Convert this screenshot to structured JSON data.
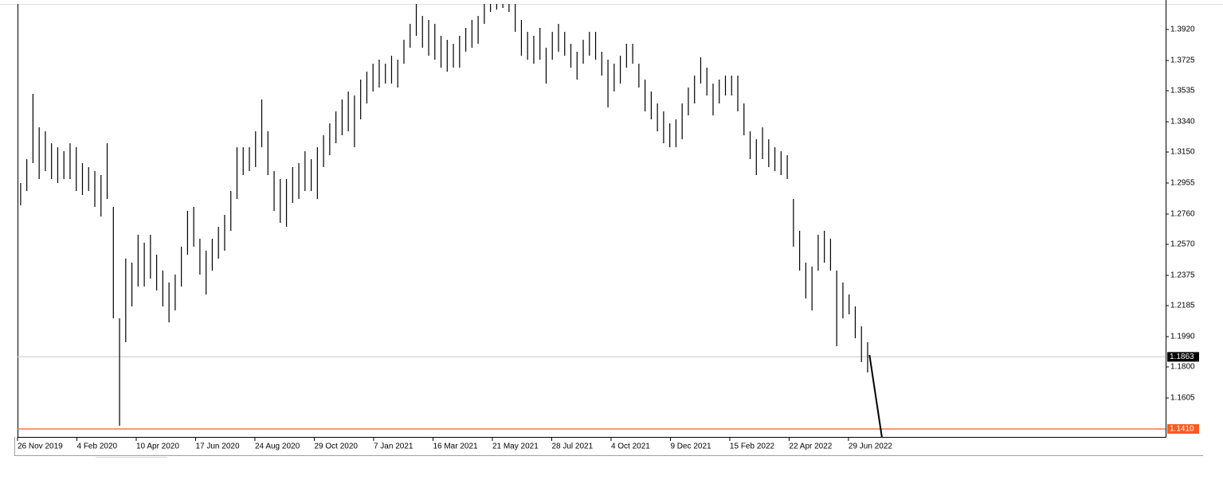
{
  "chart_data": {
    "type": "ohlc",
    "xlim": [
      0,
      185.7
    ],
    "xticks": [
      {
        "value": 0,
        "label": "26 Nov 2019"
      },
      {
        "value": 9.6,
        "label": "4 Feb 2020"
      },
      {
        "value": 19.2,
        "label": "10 Apr 2020"
      },
      {
        "value": 28.8,
        "label": "17 Jun 2020"
      },
      {
        "value": 38.4,
        "label": "24 Aug 2020"
      },
      {
        "value": 48,
        "label": "29 Oct 2020"
      },
      {
        "value": 57.6,
        "label": "7 Jan 2021"
      },
      {
        "value": 67.2,
        "label": "16 Mar 2021"
      },
      {
        "value": 76.8,
        "label": "21 May 2021"
      },
      {
        "value": 86.4,
        "label": "28 Jul 2021"
      },
      {
        "value": 96,
        "label": "4 Oct 2021"
      },
      {
        "value": 105.6,
        "label": "9 Dec 2021"
      },
      {
        "value": 115.2,
        "label": "15 Feb 2022"
      },
      {
        "value": 124.8,
        "label": "22 Apr 2022"
      },
      {
        "value": 134.4,
        "label": "29 Jun 2022"
      }
    ],
    "ylim": [
      1.136,
      1.408
    ],
    "yticks": [
      {
        "value": 1.392,
        "label": "1.3920"
      },
      {
        "value": 1.3725,
        "label": "1.3725"
      },
      {
        "value": 1.3535,
        "label": "1.3535"
      },
      {
        "value": 1.334,
        "label": "1.3340"
      },
      {
        "value": 1.315,
        "label": "1.3150"
      },
      {
        "value": 1.2955,
        "label": "1.2955"
      },
      {
        "value": 1.276,
        "label": "1.2760"
      },
      {
        "value": 1.257,
        "label": "1.2570"
      },
      {
        "value": 1.2375,
        "label": "1.2375"
      },
      {
        "value": 1.2185,
        "label": "1.2185"
      },
      {
        "value": 1.199,
        "label": "1.1990"
      },
      {
        "value": 1.18,
        "label": "1.1800"
      },
      {
        "value": 1.1605,
        "label": "1.1605"
      }
    ],
    "color": "#000000",
    "high": [
      1.2955,
      1.3105,
      1.3515,
      1.3305,
      1.328,
      1.3205,
      1.318,
      1.3155,
      1.3205,
      1.318,
      1.308,
      1.3055,
      1.303,
      1.3005,
      1.3205,
      1.2805,
      1.2105,
      1.248,
      1.2455,
      1.263,
      1.258,
      1.263,
      1.2505,
      1.2405,
      1.233,
      1.238,
      1.2555,
      1.278,
      1.2805,
      1.2605,
      1.253,
      1.2605,
      1.268,
      1.2755,
      1.2905,
      1.318,
      1.318,
      1.318,
      1.328,
      1.348,
      1.328,
      1.303,
      1.298,
      1.298,
      1.3055,
      1.308,
      1.3155,
      1.3105,
      1.318,
      1.3255,
      1.333,
      1.3405,
      1.348,
      1.353,
      1.3505,
      1.3605,
      1.3655,
      1.3705,
      1.373,
      1.3705,
      1.3755,
      1.373,
      1.3855,
      1.3955,
      1.408,
      1.4005,
      1.398,
      1.3955,
      1.388,
      1.3855,
      1.383,
      1.388,
      1.393,
      1.398,
      1.4005,
      1.408,
      1.408,
      1.408,
      1.408,
      1.408,
      1.408,
      1.398,
      1.3905,
      1.388,
      1.393,
      1.3805,
      1.3905,
      1.3955,
      1.3905,
      1.383,
      1.378,
      1.3855,
      1.3905,
      1.3905,
      1.378,
      1.373,
      1.3705,
      1.3755,
      1.383,
      1.383,
      1.3705,
      1.3605,
      1.353,
      1.3455,
      1.3405,
      1.333,
      1.3355,
      1.3455,
      1.3555,
      1.363,
      1.3745,
      1.368,
      1.358,
      1.3605,
      1.363,
      1.363,
      1.363,
      1.3455,
      1.328,
      1.323,
      1.3305,
      1.323,
      1.318,
      1.3155,
      1.313,
      1.2855,
      1.2655,
      1.2455,
      1.243,
      1.263,
      1.2655,
      1.2605,
      1.2405,
      1.233,
      1.2255,
      1.218,
      1.2055,
      1.1955
    ],
    "low": [
      1.2815,
      1.2905,
      1.308,
      1.298,
      1.303,
      1.298,
      1.2955,
      1.298,
      1.298,
      1.2905,
      1.288,
      1.2905,
      1.2805,
      1.2745,
      1.2855,
      1.2105,
      1.143,
      1.1955,
      1.218,
      1.2305,
      1.2305,
      1.2355,
      1.228,
      1.218,
      1.208,
      1.2155,
      1.2305,
      1.2505,
      1.2555,
      1.238,
      1.2255,
      1.2405,
      1.248,
      1.253,
      1.2655,
      1.2855,
      1.3005,
      1.303,
      1.3055,
      1.318,
      1.3005,
      1.278,
      1.2705,
      1.268,
      1.283,
      1.2855,
      1.2905,
      1.2905,
      1.2855,
      1.3055,
      1.313,
      1.3205,
      1.3255,
      1.328,
      1.318,
      1.3355,
      1.3455,
      1.353,
      1.3555,
      1.358,
      1.358,
      1.3555,
      1.3705,
      1.3805,
      1.388,
      1.3805,
      1.3755,
      1.373,
      1.368,
      1.3655,
      1.368,
      1.368,
      1.378,
      1.3805,
      1.383,
      1.3955,
      1.403,
      1.4045,
      1.4055,
      1.403,
      1.3905,
      1.3755,
      1.373,
      1.3705,
      1.373,
      1.358,
      1.373,
      1.378,
      1.3755,
      1.368,
      1.3605,
      1.3705,
      1.3755,
      1.373,
      1.363,
      1.343,
      1.353,
      1.358,
      1.368,
      1.3705,
      1.3555,
      1.3405,
      1.3355,
      1.328,
      1.3205,
      1.318,
      1.318,
      1.323,
      1.338,
      1.3455,
      1.358,
      1.3505,
      1.338,
      1.3455,
      1.3505,
      1.3505,
      1.3405,
      1.3255,
      1.3105,
      1.3005,
      1.3105,
      1.3055,
      1.303,
      1.3005,
      1.298,
      1.2555,
      1.2405,
      1.223,
      1.2155,
      1.2405,
      1.2455,
      1.2405,
      1.193,
      1.2105,
      1.213,
      1.198,
      1.183,
      1.1765
    ],
    "price_line": {
      "value": 1.1863,
      "label": "1.1863"
    },
    "level_line": {
      "value": 1.141,
      "label": "1.1410",
      "color": "#ff5a1f"
    },
    "trendline": {
      "x": [
        137.8,
        139.8
      ],
      "y": [
        1.1875,
        1.136
      ]
    }
  }
}
